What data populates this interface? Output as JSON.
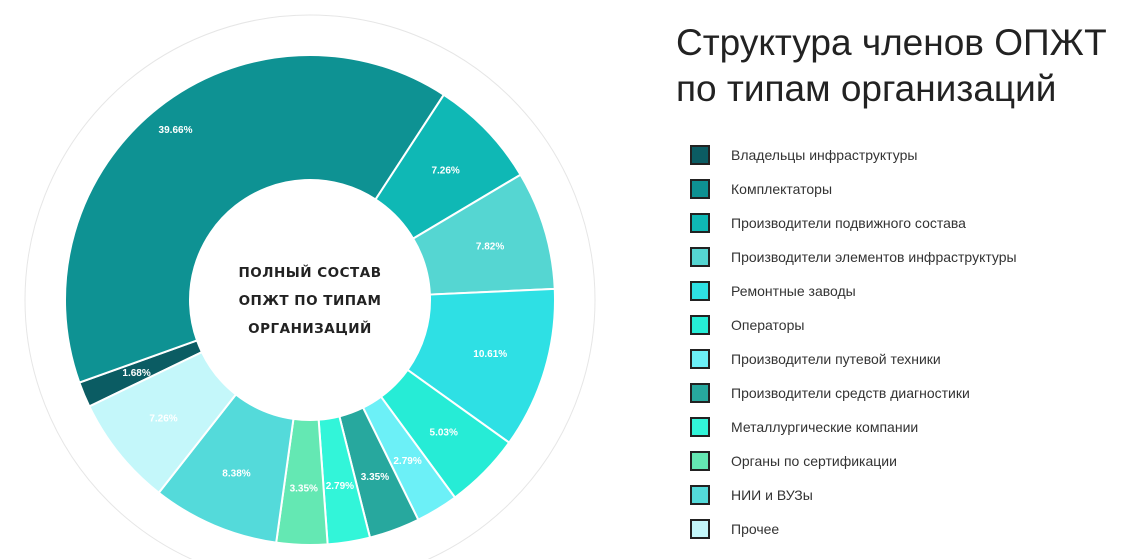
{
  "chart_data": {
    "type": "pie",
    "title": [
      "Структура членов ОПЖТ",
      "по типам организаций"
    ],
    "center_text": [
      "ПОЛНЫЙ СОСТАВ",
      "ОПЖТ ПО ТИПАМ",
      "ОРГАНИЗАЦИЙ"
    ],
    "legend_position": "right",
    "categories": [
      "Владельцы инфраструктуры",
      "Комплектаторы",
      "Производители подвижного состава",
      "Производители элементов инфраструктуры",
      "Ремонтные заводы",
      "Операторы",
      "Производители путевой техники",
      "Производители средств диагностики",
      "Металлургические компании",
      "Органы по сертификации",
      "НИИ и ВУЗы",
      "Прочее"
    ],
    "values": [
      1.68,
      39.66,
      7.26,
      7.82,
      10.61,
      5.03,
      2.79,
      3.35,
      2.79,
      3.35,
      8.38,
      7.26
    ],
    "value_labels": [
      "1.68%",
      "39.66%",
      "7.26%",
      "7.82%",
      "10.61%",
      "5.03%",
      "2.79%",
      "3.35%",
      "2.79%",
      "3.35%",
      "8.38%",
      "7.26%"
    ],
    "colors": [
      "#0b5c63",
      "#0e9293",
      "#0fb8b5",
      "#55d6d2",
      "#2ee0e4",
      "#26ecd6",
      "#6cf0f7",
      "#27a89e",
      "#32f5d9",
      "#64e8b3",
      "#54dada",
      "#c4f7fa"
    ]
  }
}
